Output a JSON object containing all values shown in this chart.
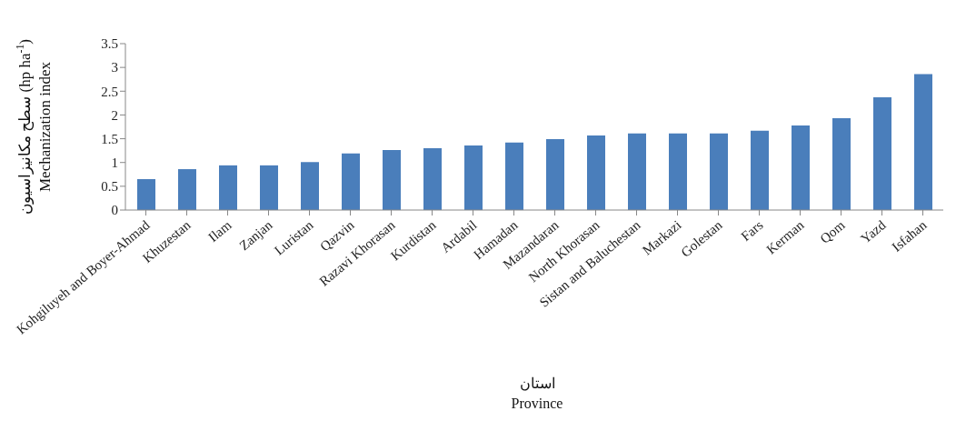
{
  "chart_data": {
    "type": "bar",
    "xlabel": "استان\nProvince",
    "ylabel": "سطح مکانیزاسیون (hp ha$^{-1}$)\nMechanization index",
    "categories": [
      "Kohgiluyeh and Boyer-Ahmad",
      "Khuzestan",
      "Ilam",
      "Zanjan",
      "Luristan",
      "Qazvin",
      "Razavi Khorasan",
      "Kurdistan",
      "Ardabil",
      "Hamadan",
      "Mazandaran",
      "North Khorasan",
      "Sistan and Baluchestan",
      "Markazi",
      "Golestan",
      "Fars",
      "Kerman",
      "Qom",
      "Yazd",
      "Isfahan"
    ],
    "values": [
      0.65,
      0.86,
      0.94,
      0.94,
      1.01,
      1.19,
      1.26,
      1.3,
      1.36,
      1.42,
      1.49,
      1.57,
      1.61,
      1.61,
      1.61,
      1.67,
      1.78,
      1.93,
      2.37,
      2.86
    ],
    "color": "#4a7ebb",
    "ylim": [
      0,
      3.5
    ],
    "yticks": [
      0,
      0.5,
      1,
      1.5,
      2,
      2.5,
      3,
      3.5
    ],
    "grid": false,
    "legend": false
  }
}
